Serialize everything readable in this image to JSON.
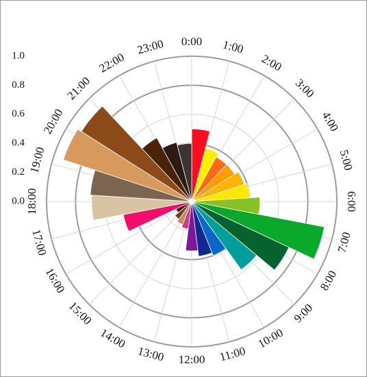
{
  "chart_data": {
    "type": "polar-bar",
    "title": "",
    "radial_axis": {
      "range": [
        0,
        1.0
      ],
      "ticks": [
        "0.0",
        "0.2",
        "0.4",
        "0.6",
        "0.8",
        "1.0"
      ],
      "grid": true
    },
    "angular_axis": {
      "direction": "clockwise",
      "start": "top",
      "ticks": [
        "0:00",
        "1:00",
        "2:00",
        "3:00",
        "4:00",
        "5:00",
        "6:00",
        "7:00",
        "8:00",
        "9:00",
        "10:00",
        "11:00",
        "12:00",
        "13:00",
        "14:00",
        "15:00",
        "16:00",
        "17:00",
        "18:00",
        "19:00",
        "20:00",
        "21:00",
        "22:00",
        "23:00"
      ]
    },
    "bars": [
      {
        "x": "0:00",
        "value": 0.5,
        "color": "#ff0d1f"
      },
      {
        "x": "1:00",
        "value": 0.38,
        "color": "#ffee00"
      },
      {
        "x": "2:00",
        "value": 0.35,
        "color": "#ff6a12"
      },
      {
        "x": "3:00",
        "value": 0.35,
        "color": "#ff9c00"
      },
      {
        "x": "4:00",
        "value": 0.38,
        "color": "#ffb400"
      },
      {
        "x": "5:00",
        "value": 0.4,
        "color": "#ffe800"
      },
      {
        "x": "6:00",
        "value": 0.47,
        "color": "#86c226"
      },
      {
        "x": "7:00",
        "value": 0.93,
        "color": "#0aa82b"
      },
      {
        "x": "8:00",
        "value": 0.74,
        "color": "#07632e"
      },
      {
        "x": "9:00",
        "value": 0.58,
        "color": "#009e9a"
      },
      {
        "x": "10:00",
        "value": 0.4,
        "color": "#0b68c8"
      },
      {
        "x": "11:00",
        "value": 0.38,
        "color": "#122790"
      },
      {
        "x": "12:00",
        "value": 0.34,
        "color": "#7a1a9a"
      },
      {
        "x": "13:00",
        "value": 0.19,
        "color": "#c83a8b"
      },
      {
        "x": "14:00",
        "value": 0.17,
        "color": "#c18a5f"
      },
      {
        "x": "15:00",
        "value": 0.15,
        "color": "#7a3a1a"
      },
      {
        "x": "16:00",
        "value": 0.12,
        "color": "#2a1a10"
      },
      {
        "x": "17:00",
        "value": 0.48,
        "color": "#f20e6a"
      },
      {
        "x": "18:00",
        "value": 0.69,
        "color": "#d8c4a2"
      },
      {
        "x": "19:00",
        "value": 0.7,
        "color": "#7b654f"
      },
      {
        "x": "20:00",
        "value": 0.93,
        "color": "#d89a5c"
      },
      {
        "x": "21:00",
        "value": 0.9,
        "color": "#8b4a18"
      },
      {
        "x": "22:00",
        "value": 0.5,
        "color": "#4a2208"
      },
      {
        "x": "23:00",
        "value": 0.42,
        "color": "#2b1a12"
      },
      {
        "x": "23:30",
        "value": 0.4,
        "color": "#3c3432"
      }
    ]
  }
}
